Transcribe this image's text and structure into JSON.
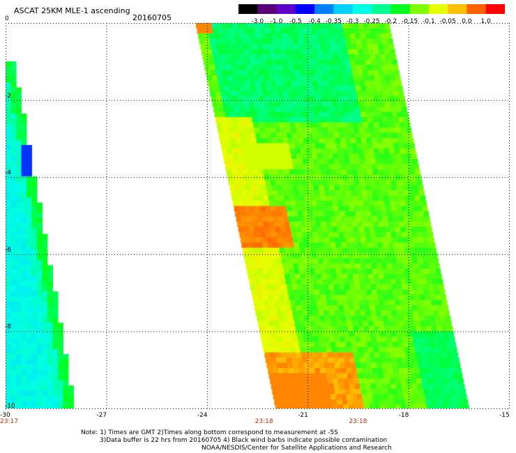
{
  "title": "ASCAT 25KM MLE-1 ascending",
  "date": "20160705",
  "colorbar": {
    "labels": [
      "-3.0",
      "-1.0",
      "-0.5",
      "-0.4",
      "-0.35",
      "-0.3",
      "-0.25",
      "-0.2",
      "-0.15",
      "-0.1",
      "-0.05",
      "0.0",
      "1.0"
    ],
    "colors": [
      "#000000",
      "#5a0078",
      "#6000c8",
      "#0000ff",
      "#0080ff",
      "#00d0ff",
      "#00ffe6",
      "#00ff90",
      "#00ff20",
      "#80ff00",
      "#e6ff00",
      "#ffc000",
      "#ff6000",
      "#ff0000"
    ]
  },
  "axes": {
    "lon_ticks": [
      "-30",
      "-27",
      "-24",
      "-21",
      "-18",
      "-15"
    ],
    "lon_values": [
      -30,
      -27,
      -24,
      -21,
      -18,
      -15
    ],
    "lat_ticks": [
      "0",
      "-2",
      "-4",
      "-6",
      "-8",
      "-10"
    ],
    "lat_values": [
      0,
      -2,
      -4,
      -6,
      -8,
      -10
    ],
    "lon_range": [
      -30,
      -15
    ],
    "lat_range": [
      -10,
      0
    ]
  },
  "times": [
    {
      "label": "23:17",
      "lon": -30
    },
    {
      "label": "23:18",
      "lon": -22.3
    },
    {
      "label": "23:18",
      "lon": -19.5
    }
  ],
  "notes": [
    "Note: 1) Times are GMT 2)Times along bottom correspond to measurement at -5S",
    "3)Data buffer is 22 hrs from 20160705 4) Black wind barbs indicate possible contamination",
    "NOAA/NESDIS/Center for Satellite Applications and Research"
  ]
}
